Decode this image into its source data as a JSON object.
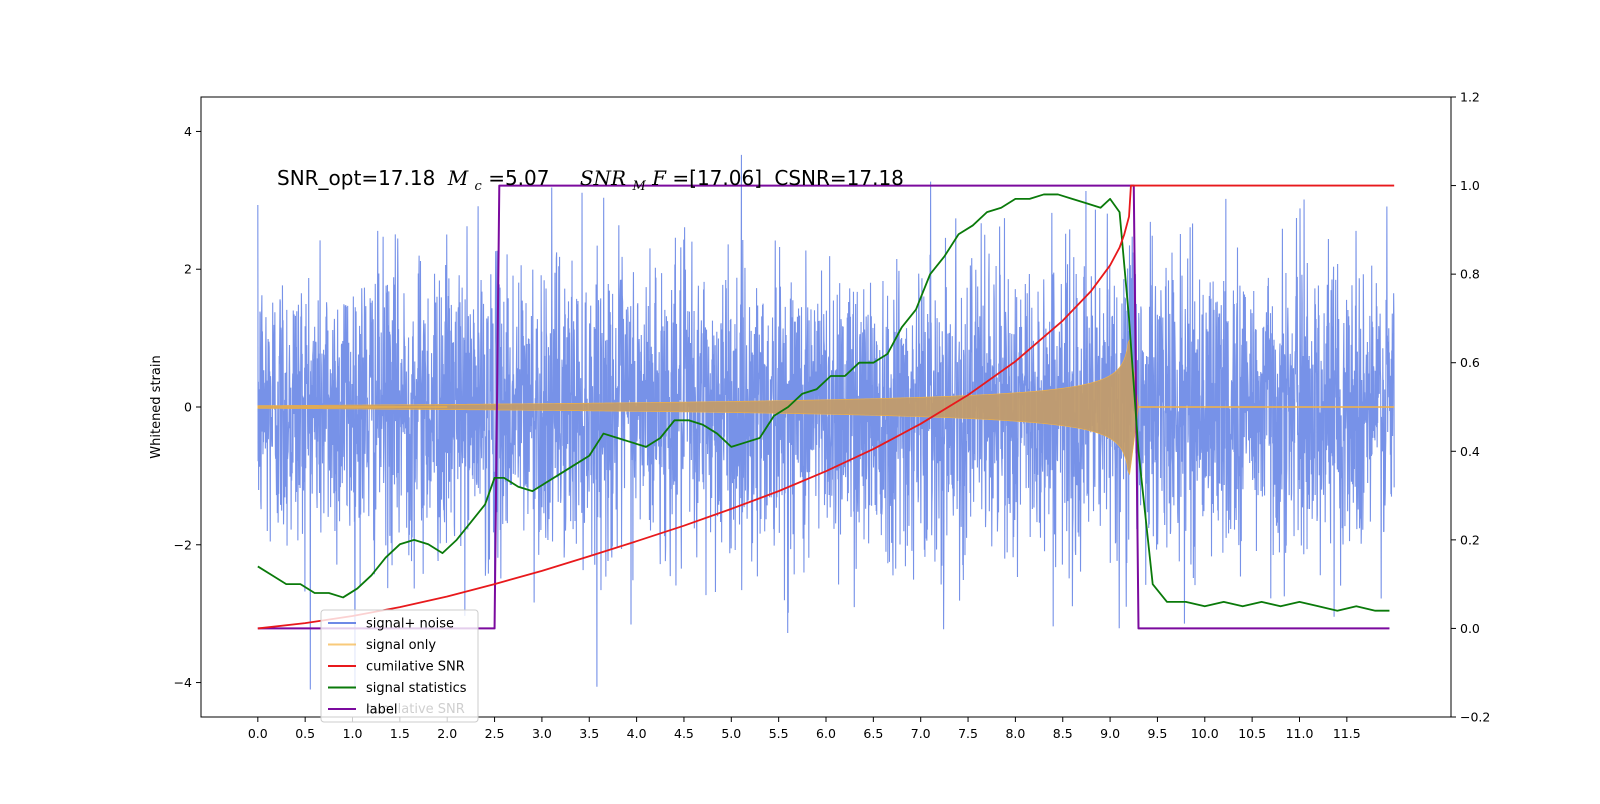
{
  "chart_data": {
    "type": "line",
    "title": "",
    "xlabel": "",
    "ylabel": "Whitened strain",
    "y2label": "",
    "annotation": {
      "snr_opt_text": "SNR_opt=17.18",
      "mc_symbol": "M",
      "mc_subscript": "c",
      "mc_value_text": "=5.07",
      "snr_mf_symbol": "SNR",
      "snr_mf_subscript": "M",
      "snr_mf_italic_tail": "F",
      "snr_mf_value_text": "=[17.06]",
      "csnr_text": "CSNR=17.18"
    },
    "xlim": [
      -0.6,
      12.6
    ],
    "ylim": [
      -4.5,
      4.5
    ],
    "y2lim": [
      -0.2,
      1.2
    ],
    "x_ticks": [
      0.0,
      0.5,
      1.0,
      1.5,
      2.0,
      2.5,
      3.0,
      3.5,
      4.0,
      4.5,
      5.0,
      5.5,
      6.0,
      6.5,
      7.0,
      7.5,
      8.0,
      8.5,
      9.0,
      9.5,
      10.0,
      10.5,
      11.0,
      11.5
    ],
    "x_tick_labels": [
      "0.0",
      "0.5",
      "1.0",
      "1.5",
      "2.0",
      "2.5",
      "3.0",
      "3.5",
      "4.0",
      "4.5",
      "5.0",
      "5.5",
      "6.0",
      "6.5",
      "7.0",
      "7.5",
      "8.0",
      "8.5",
      "9.0",
      "9.5",
      "10.0",
      "10.5",
      "11.0",
      "11.5"
    ],
    "y_ticks": [
      -4,
      -2,
      0,
      2,
      4
    ],
    "y_tick_labels": [
      "−4",
      "−2",
      "0",
      "2",
      "4"
    ],
    "y2_ticks": [
      -0.2,
      0.0,
      0.2,
      0.4,
      0.6,
      0.8,
      1.0,
      1.2
    ],
    "y2_tick_labels": [
      "−0.2",
      "0.0",
      "0.2",
      "0.4",
      "0.6",
      "0.8",
      "1.0",
      "1.2"
    ],
    "grid": false,
    "legend_position": "lower-left",
    "noise": {
      "x_range": [
        0.0,
        12.0
      ],
      "sigma": 1.05,
      "seed": 12345,
      "samples": 4200
    },
    "chirp": {
      "x_start": 0.0,
      "x_merger": 9.2,
      "x_ringdown_end": 9.3,
      "x_end": 12.0,
      "amp_start": 0.02,
      "amp_merger": 1.05
    },
    "series": [
      {
        "name": "signal+ noise",
        "color": "#4a6de0",
        "axis": "left"
      },
      {
        "name": "signal only",
        "color": "#f5b342",
        "axis": "left"
      },
      {
        "name": "cumilative SNR",
        "color": "#e8191c",
        "axis": "right",
        "x": [
          0.0,
          0.5,
          1.0,
          1.5,
          2.0,
          2.5,
          3.0,
          3.5,
          4.0,
          4.5,
          5.0,
          5.5,
          6.0,
          6.5,
          7.0,
          7.5,
          8.0,
          8.5,
          8.8,
          9.0,
          9.1,
          9.15,
          9.2,
          9.22,
          9.3,
          12.0
        ],
        "values": [
          0.0,
          0.012,
          0.028,
          0.048,
          0.072,
          0.1,
          0.13,
          0.163,
          0.197,
          0.232,
          0.27,
          0.31,
          0.355,
          0.405,
          0.462,
          0.527,
          0.603,
          0.695,
          0.762,
          0.82,
          0.86,
          0.89,
          0.93,
          1.0,
          1.0,
          1.0
        ]
      },
      {
        "name": "signal statistics",
        "color": "#0a7a0a",
        "axis": "right",
        "x": [
          0.0,
          0.15,
          0.3,
          0.45,
          0.6,
          0.75,
          0.9,
          1.05,
          1.2,
          1.35,
          1.5,
          1.65,
          1.8,
          1.95,
          2.1,
          2.25,
          2.4,
          2.5,
          2.6,
          2.75,
          2.9,
          3.05,
          3.2,
          3.35,
          3.5,
          3.65,
          3.8,
          3.95,
          4.1,
          4.25,
          4.4,
          4.55,
          4.7,
          4.85,
          5.0,
          5.15,
          5.3,
          5.45,
          5.6,
          5.75,
          5.9,
          6.05,
          6.2,
          6.35,
          6.5,
          6.65,
          6.8,
          6.95,
          7.1,
          7.25,
          7.4,
          7.55,
          7.7,
          7.85,
          8.0,
          8.15,
          8.3,
          8.45,
          8.6,
          8.75,
          8.9,
          9.0,
          9.1,
          9.2,
          9.3,
          9.45,
          9.6,
          9.8,
          10.0,
          10.2,
          10.4,
          10.6,
          10.8,
          11.0,
          11.2,
          11.4,
          11.6,
          11.8,
          11.95
        ],
        "values": [
          0.14,
          0.12,
          0.1,
          0.1,
          0.08,
          0.08,
          0.07,
          0.09,
          0.12,
          0.16,
          0.19,
          0.2,
          0.19,
          0.17,
          0.2,
          0.24,
          0.28,
          0.34,
          0.34,
          0.32,
          0.31,
          0.33,
          0.35,
          0.37,
          0.39,
          0.44,
          0.43,
          0.42,
          0.41,
          0.43,
          0.47,
          0.47,
          0.46,
          0.44,
          0.41,
          0.42,
          0.43,
          0.48,
          0.5,
          0.53,
          0.54,
          0.57,
          0.57,
          0.6,
          0.6,
          0.62,
          0.68,
          0.72,
          0.8,
          0.84,
          0.89,
          0.91,
          0.94,
          0.95,
          0.97,
          0.97,
          0.98,
          0.98,
          0.97,
          0.96,
          0.95,
          0.97,
          0.94,
          0.7,
          0.4,
          0.1,
          0.06,
          0.06,
          0.05,
          0.06,
          0.05,
          0.06,
          0.05,
          0.06,
          0.05,
          0.04,
          0.05,
          0.04,
          0.04
        ]
      },
      {
        "name": "label",
        "color": "#7b0a9e",
        "axis": "right",
        "x": [
          0.0,
          2.5,
          2.55,
          9.25,
          9.3,
          11.95
        ],
        "values": [
          0.0,
          0.0,
          1.0,
          1.0,
          0.0,
          0.0
        ]
      }
    ],
    "legend_overflow_text": "cumilative SNR"
  }
}
